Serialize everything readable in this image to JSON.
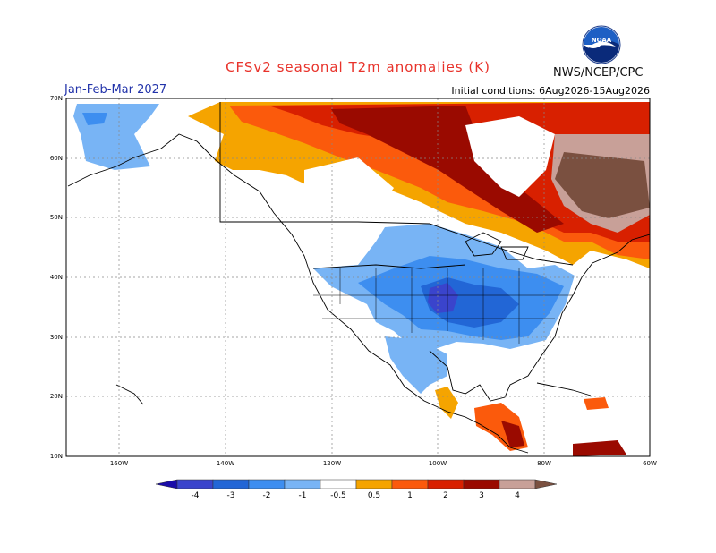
{
  "title": "CFSv2 seasonal T2m anomalies (K)",
  "period": "Jan-Feb-Mar 2027",
  "initial_conditions": "Initial conditions: 6Aug2026-15Aug2026",
  "agency": "NWS/NCEP/CPC",
  "logo_text": "NOAA",
  "colors": {
    "title": "#e8322a",
    "period": "#2233aa"
  },
  "lat_labels": [
    "70N",
    "60N",
    "50N",
    "40N",
    "30N",
    "20N",
    "10N"
  ],
  "lon_labels": [
    "160W",
    "140W",
    "120W",
    "100W",
    "80W",
    "60W"
  ],
  "colorbar": {
    "labels": [
      "-4",
      "-3",
      "-2",
      "-1",
      "-0.5",
      "0.5",
      "1",
      "2",
      "3",
      "4"
    ],
    "bins": [
      {
        "color": "#1a0ca8"
      },
      {
        "color": "#3a44cc"
      },
      {
        "color": "#2266d6"
      },
      {
        "color": "#3d8ef0"
      },
      {
        "color": "#78b4f5"
      },
      {
        "color": "#ffffff"
      },
      {
        "color": "#f5a400"
      },
      {
        "color": "#fb5a0c"
      },
      {
        "color": "#d82000"
      },
      {
        "color": "#9a0a00"
      },
      {
        "color": "#c8a098"
      },
      {
        "color": "#7a5040"
      }
    ]
  }
}
